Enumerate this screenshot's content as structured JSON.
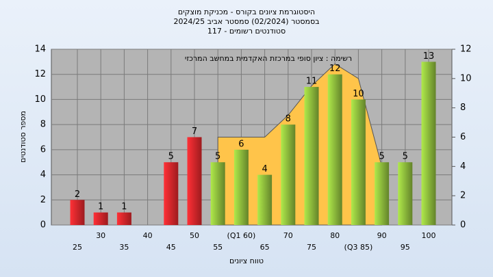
{
  "chart_data": {
    "type": "bar",
    "title": [
      "היסטוגרמת ציונים בקורס - מכניקת מוצקים",
      "בסמסטר  (02/2024)  סמסטר אביב 2024/25",
      "סטודנטים רשומים - 117"
    ],
    "annotation": "רשימה : ציון סופי במרכזת האקדמית במחשב המרכזי",
    "x_label": "טווח ציונים",
    "y_label": "מספר סטודנטים",
    "categories": [
      "25",
      "30",
      "35",
      "40",
      "45",
      "50",
      "55",
      "(Q1 60)",
      "65",
      "70",
      "75",
      "80",
      "(Q3 85)",
      "90",
      "95",
      "100"
    ],
    "values": [
      2,
      1,
      1,
      0,
      5,
      7,
      5,
      6,
      4,
      8,
      11,
      12,
      10,
      5,
      5,
      13
    ],
    "colors": [
      "#e0262b",
      "#e0262b",
      "#e0262b",
      "#e0262b",
      "#e0262b",
      "#e0262b",
      "#8dbb3c",
      "#8dbb3c",
      "#8dbb3c",
      "#8dbb3c",
      "#8dbb3c",
      "#8dbb3c",
      "#8dbb3c",
      "#8dbb3c",
      "#8dbb3c",
      "#8dbb3c"
    ],
    "area": {
      "axis": "y2",
      "color": "#ffc44a",
      "values": [
        null,
        null,
        null,
        null,
        null,
        null,
        6,
        6,
        6,
        7.5,
        9.5,
        11,
        10,
        4,
        null,
        null
      ]
    },
    "ylim": [
      0,
      14
    ],
    "yticks": [
      0,
      2,
      4,
      6,
      8,
      10,
      12,
      14
    ],
    "y2lim": [
      0,
      12
    ],
    "y2ticks": [
      0,
      2,
      4,
      6,
      8,
      10,
      12
    ],
    "grid": true
  }
}
